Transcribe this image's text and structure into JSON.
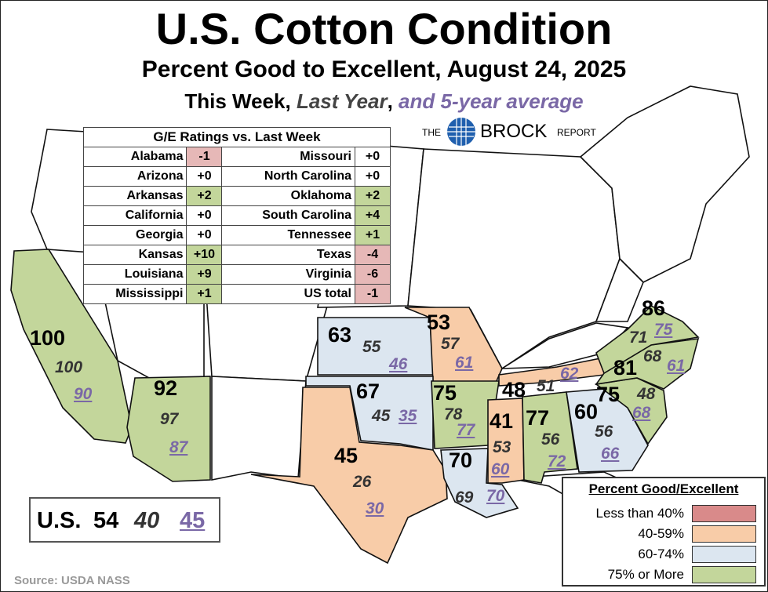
{
  "title": "U.S. Cotton Condition",
  "subtitle": "Percent Good to Excellent, August 24, 2025",
  "tagline": {
    "prefix": "This Week,",
    "last_year": "Last Year",
    "comma": ",",
    "five_year": "and 5-year average"
  },
  "logo": {
    "the": "THE",
    "brock": "BROCK",
    "report": "REPORT"
  },
  "colors": {
    "less_than_40": "#d98a8a",
    "pct_40_59": "#f8cca8",
    "pct_60_74": "#dce6f0",
    "pct_75_more": "#c3d69b",
    "neutral": "#ffffff",
    "average_text": "#7a68a6"
  },
  "ge_table": {
    "header": "G/E Ratings vs. Last Week",
    "left": [
      {
        "state": "Alabama",
        "change": "-1",
        "color": "#e6b8b7"
      },
      {
        "state": "Arizona",
        "change": "+0",
        "color": "#ffffff"
      },
      {
        "state": "Arkansas",
        "change": "+2",
        "color": "#c3d69b"
      },
      {
        "state": "California",
        "change": "+0",
        "color": "#ffffff"
      },
      {
        "state": "Georgia",
        "change": "+0",
        "color": "#ffffff"
      },
      {
        "state": "Kansas",
        "change": "+10",
        "color": "#c3d69b"
      },
      {
        "state": "Louisiana",
        "change": "+9",
        "color": "#c3d69b"
      },
      {
        "state": "Mississippi",
        "change": "+1",
        "color": "#c3d69b"
      }
    ],
    "right": [
      {
        "state": "Missouri",
        "change": "+0",
        "color": "#ffffff"
      },
      {
        "state": "North Carolina",
        "change": "+0",
        "color": "#ffffff"
      },
      {
        "state": "Oklahoma",
        "change": "+2",
        "color": "#c3d69b"
      },
      {
        "state": "South Carolina",
        "change": "+4",
        "color": "#c3d69b"
      },
      {
        "state": "Tennessee",
        "change": "+1",
        "color": "#c3d69b"
      },
      {
        "state": "Texas",
        "change": "-4",
        "color": "#e6b8b7"
      },
      {
        "state": "Virginia",
        "change": "-6",
        "color": "#e6b8b7"
      },
      {
        "state": "US total",
        "change": "-1",
        "color": "#e6b8b7"
      }
    ]
  },
  "states": [
    {
      "id": "california",
      "this_week": "100",
      "last_year": "100",
      "five_year": "90",
      "category": "pct_75_more"
    },
    {
      "id": "arizona",
      "this_week": "92",
      "last_year": "97",
      "five_year": "87",
      "category": "pct_75_more"
    },
    {
      "id": "kansas",
      "this_week": "63",
      "last_year": "55",
      "five_year": "46",
      "category": "pct_60_74"
    },
    {
      "id": "missouri",
      "this_week": "53",
      "last_year": "57",
      "five_year": "61",
      "category": "pct_40_59"
    },
    {
      "id": "oklahoma",
      "this_week": "67",
      "last_year": "45",
      "five_year": "35",
      "category": "pct_60_74"
    },
    {
      "id": "texas",
      "this_week": "45",
      "last_year": "26",
      "five_year": "30",
      "category": "pct_40_59"
    },
    {
      "id": "arkansas",
      "this_week": "75",
      "last_year": "78",
      "five_year": "77",
      "category": "pct_75_more"
    },
    {
      "id": "louisiana",
      "this_week": "70",
      "last_year": "69",
      "five_year": "70",
      "category": "pct_60_74"
    },
    {
      "id": "mississippi",
      "this_week": "41",
      "last_year": "53",
      "five_year": "60",
      "category": "pct_40_59"
    },
    {
      "id": "tennessee",
      "this_week": "48",
      "last_year": "51",
      "five_year": "62",
      "category": "pct_40_59"
    },
    {
      "id": "alabama",
      "this_week": "77",
      "last_year": "56",
      "five_year": "72",
      "category": "pct_75_more"
    },
    {
      "id": "georgia",
      "this_week": "60",
      "last_year": "56",
      "five_year": "66",
      "category": "pct_60_74"
    },
    {
      "id": "south_carolina",
      "this_week": "75",
      "last_year": "48",
      "five_year": "68",
      "category": "pct_75_more"
    },
    {
      "id": "north_carolina",
      "this_week": "81",
      "last_year": "68",
      "five_year": "61",
      "category": "pct_75_more"
    },
    {
      "id": "virginia",
      "this_week": "86",
      "last_year": "71",
      "five_year": "75",
      "category": "pct_75_more"
    }
  ],
  "us_total": {
    "label": "U.S.",
    "this_week": "54",
    "last_year": "40",
    "five_year": "45"
  },
  "legend": {
    "title": "Percent Good/Excellent",
    "items": [
      {
        "label": "Less than 40%",
        "color": "#d98a8a"
      },
      {
        "label": "40-59%",
        "color": "#f8cca8"
      },
      {
        "label": "60-74%",
        "color": "#dce6f0"
      },
      {
        "label": "75% or More",
        "color": "#c3d69b"
      }
    ]
  },
  "source": "Source: USDA NASS"
}
